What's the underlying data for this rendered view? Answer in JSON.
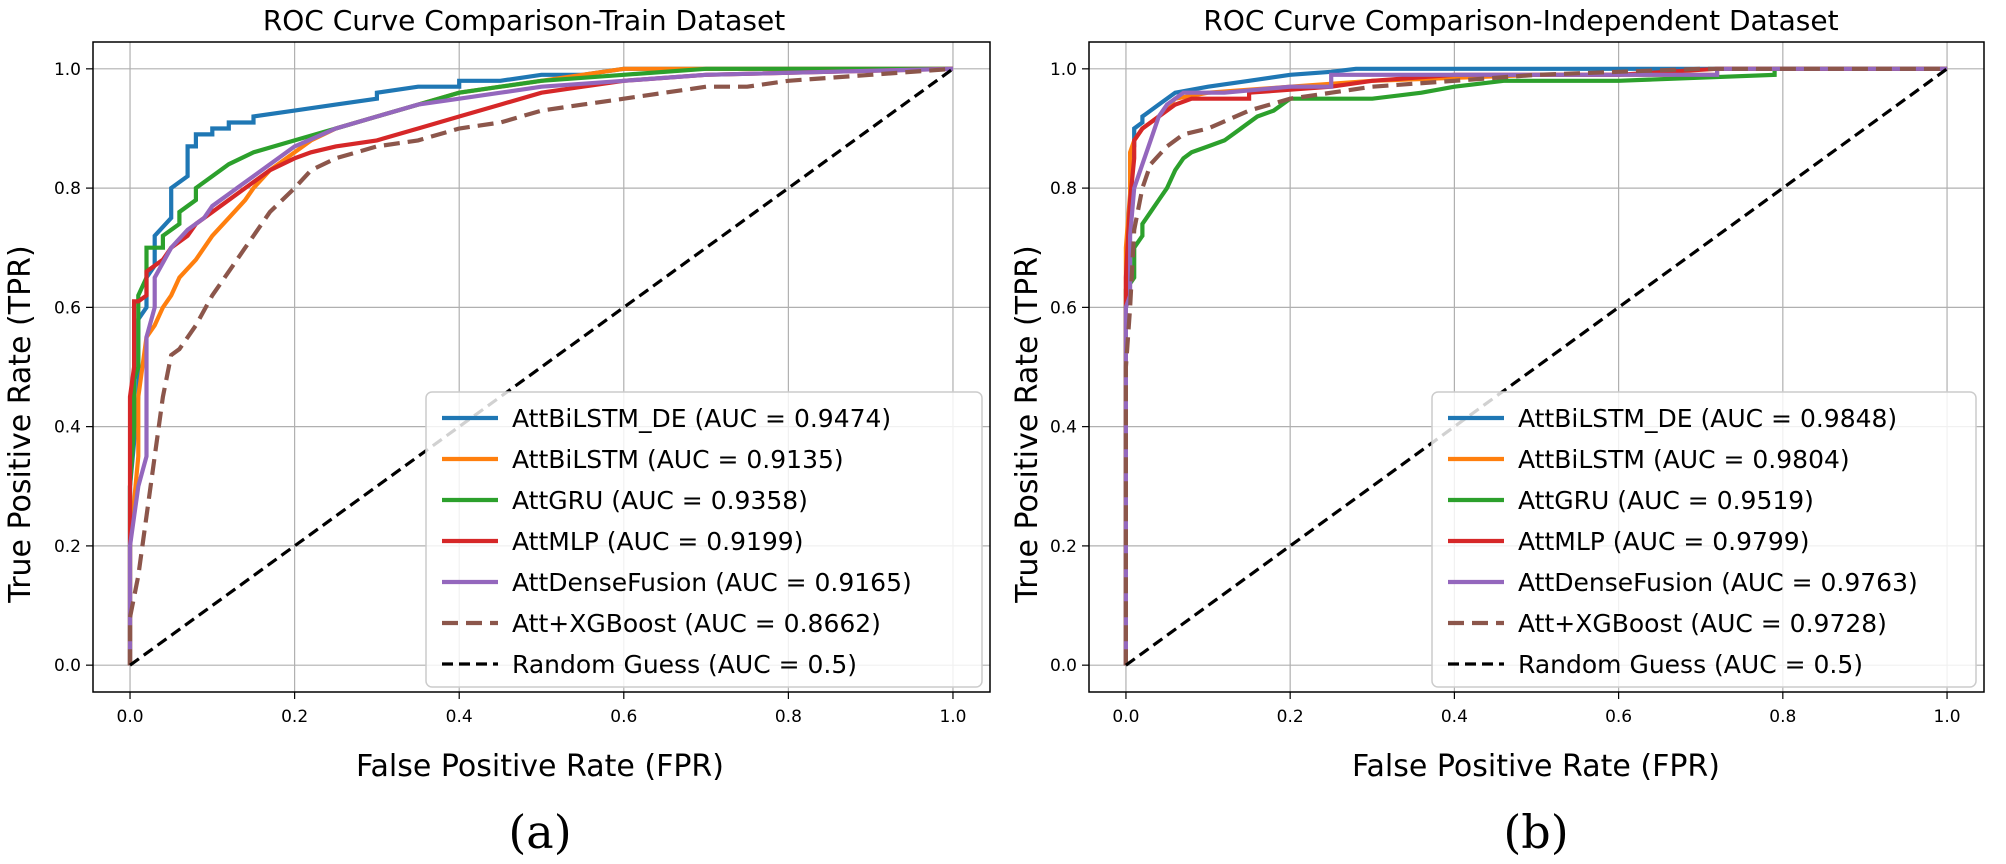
{
  "chart_data": [
    {
      "type": "line",
      "caption": "(a)",
      "title": "ROC Curve Comparison-Train Dataset",
      "xlabel": "False Positive Rate (FPR)",
      "ylabel": "True Positive Rate (TPR)",
      "xlim": [
        -0.045,
        1.045
      ],
      "ylim": [
        -0.045,
        1.045
      ],
      "xticks": [
        "0.0",
        "0.2",
        "0.4",
        "0.6",
        "0.8",
        "1.0"
      ],
      "yticks": [
        "0.0",
        "0.2",
        "0.4",
        "0.6",
        "0.8",
        "1.0"
      ],
      "grid": true,
      "legend_position": "lower-right",
      "series": [
        {
          "name": "AttBiLSTM_DE (AUC = 0.9474)",
          "color": "#1f77b4",
          "dashed": false,
          "x": [
            0,
            0,
            0.01,
            0.01,
            0.02,
            0.02,
            0.03,
            0.03,
            0.05,
            0.05,
            0.07,
            0.07,
            0.08,
            0.08,
            0.1,
            0.1,
            0.12,
            0.12,
            0.15,
            0.15,
            0.2,
            0.25,
            0.3,
            0.3,
            0.35,
            0.4,
            0.4,
            0.45,
            0.5,
            0.55,
            0.6,
            0.7,
            1.0
          ],
          "y": [
            0,
            0.3,
            0.45,
            0.58,
            0.6,
            0.65,
            0.67,
            0.72,
            0.75,
            0.8,
            0.82,
            0.87,
            0.87,
            0.89,
            0.89,
            0.9,
            0.9,
            0.91,
            0.91,
            0.92,
            0.93,
            0.94,
            0.95,
            0.96,
            0.97,
            0.97,
            0.98,
            0.98,
            0.99,
            0.99,
            1.0,
            1.0,
            1.0
          ]
        },
        {
          "name": "AttBiLSTM (AUC = 0.9135)",
          "color": "#ff7f0e",
          "dashed": false,
          "x": [
            0,
            0,
            0.01,
            0.01,
            0.02,
            0.03,
            0.04,
            0.05,
            0.06,
            0.08,
            0.1,
            0.12,
            0.14,
            0.15,
            0.17,
            0.2,
            0.22,
            0.25,
            0.3,
            0.35,
            0.4,
            0.45,
            0.5,
            0.55,
            0.6,
            0.7,
            1.0
          ],
          "y": [
            0,
            0.2,
            0.35,
            0.45,
            0.55,
            0.57,
            0.6,
            0.62,
            0.65,
            0.68,
            0.72,
            0.75,
            0.78,
            0.8,
            0.83,
            0.86,
            0.88,
            0.9,
            0.92,
            0.94,
            0.96,
            0.97,
            0.98,
            0.99,
            1.0,
            1.0,
            1.0
          ]
        },
        {
          "name": "AttGRU (AUC = 0.9358)",
          "color": "#2ca02c",
          "dashed": false,
          "x": [
            0,
            0,
            0.005,
            0.005,
            0.01,
            0.01,
            0.02,
            0.02,
            0.04,
            0.04,
            0.06,
            0.06,
            0.08,
            0.08,
            0.1,
            0.12,
            0.15,
            0.2,
            0.25,
            0.3,
            0.35,
            0.4,
            0.45,
            0.5,
            0.6,
            0.7,
            1.0
          ],
          "y": [
            0,
            0.3,
            0.4,
            0.48,
            0.5,
            0.62,
            0.65,
            0.7,
            0.7,
            0.72,
            0.74,
            0.76,
            0.78,
            0.8,
            0.82,
            0.84,
            0.86,
            0.88,
            0.9,
            0.92,
            0.94,
            0.96,
            0.97,
            0.98,
            0.99,
            1.0,
            1.0
          ]
        },
        {
          "name": "AttMLP (AUC = 0.9199)",
          "color": "#d62728",
          "dashed": false,
          "x": [
            0,
            0,
            0.005,
            0.005,
            0.01,
            0.02,
            0.02,
            0.04,
            0.05,
            0.07,
            0.08,
            0.1,
            0.12,
            0.14,
            0.17,
            0.2,
            0.22,
            0.25,
            0.3,
            0.35,
            0.4,
            0.45,
            0.5,
            0.55,
            0.6,
            0.7,
            1.0
          ],
          "y": [
            0,
            0.45,
            0.5,
            0.61,
            0.61,
            0.62,
            0.66,
            0.68,
            0.7,
            0.72,
            0.74,
            0.76,
            0.78,
            0.8,
            0.83,
            0.85,
            0.86,
            0.87,
            0.88,
            0.9,
            0.92,
            0.94,
            0.96,
            0.97,
            0.98,
            0.99,
            1.0
          ]
        },
        {
          "name": "AttDenseFusion (AUC = 0.9165)",
          "color": "#9467bd",
          "dashed": false,
          "x": [
            0,
            0,
            0.01,
            0.02,
            0.02,
            0.03,
            0.03,
            0.05,
            0.07,
            0.09,
            0.1,
            0.11,
            0.12,
            0.13,
            0.15,
            0.18,
            0.2,
            0.25,
            0.3,
            0.35,
            0.4,
            0.45,
            0.5,
            0.6,
            0.7,
            1.0
          ],
          "y": [
            0,
            0.2,
            0.3,
            0.35,
            0.55,
            0.6,
            0.65,
            0.7,
            0.73,
            0.75,
            0.77,
            0.78,
            0.79,
            0.8,
            0.82,
            0.85,
            0.87,
            0.9,
            0.92,
            0.94,
            0.95,
            0.96,
            0.97,
            0.98,
            0.99,
            1.0
          ]
        },
        {
          "name": "Att+XGBoost (AUC = 0.8662)",
          "color": "#8c564b",
          "dashed": true,
          "x": [
            0,
            0,
            0.01,
            0.02,
            0.03,
            0.04,
            0.05,
            0.06,
            0.08,
            0.1,
            0.12,
            0.14,
            0.15,
            0.17,
            0.2,
            0.22,
            0.25,
            0.3,
            0.35,
            0.4,
            0.45,
            0.5,
            0.55,
            0.6,
            0.65,
            0.7,
            0.75,
            0.8,
            0.9,
            1.0
          ],
          "y": [
            0,
            0.08,
            0.15,
            0.25,
            0.35,
            0.45,
            0.52,
            0.53,
            0.57,
            0.62,
            0.66,
            0.7,
            0.72,
            0.76,
            0.8,
            0.83,
            0.85,
            0.87,
            0.88,
            0.9,
            0.91,
            0.93,
            0.94,
            0.95,
            0.96,
            0.97,
            0.97,
            0.98,
            0.99,
            1.0
          ]
        },
        {
          "name": "Random Guess (AUC = 0.5)",
          "color": "#000000",
          "dashed": true,
          "x": [
            0,
            1
          ],
          "y": [
            0,
            1
          ]
        }
      ]
    },
    {
      "type": "line",
      "caption": "(b)",
      "title": "ROC Curve Comparison-Independent Dataset",
      "xlabel": "False Positive Rate (FPR)",
      "ylabel": "True Positive Rate (TPR)",
      "xlim": [
        -0.045,
        1.045
      ],
      "ylim": [
        -0.045,
        1.045
      ],
      "xticks": [
        "0.0",
        "0.2",
        "0.4",
        "0.6",
        "0.8",
        "1.0"
      ],
      "yticks": [
        "0.0",
        "0.2",
        "0.4",
        "0.6",
        "0.8",
        "1.0"
      ],
      "grid": true,
      "legend_position": "lower-right",
      "series": [
        {
          "name": "AttBiLSTM_DE (AUC = 0.9848)",
          "color": "#1f77b4",
          "dashed": false,
          "x": [
            0,
            0,
            0.005,
            0.005,
            0.01,
            0.01,
            0.02,
            0.02,
            0.03,
            0.04,
            0.06,
            0.1,
            0.15,
            0.2,
            0.25,
            0.28,
            0.3,
            1.0
          ],
          "y": [
            0,
            0.6,
            0.75,
            0.85,
            0.87,
            0.9,
            0.91,
            0.92,
            0.93,
            0.94,
            0.96,
            0.97,
            0.98,
            0.99,
            0.995,
            1.0,
            1.0,
            1.0
          ]
        },
        {
          "name": "AttBiLSTM (AUC = 0.9804)",
          "color": "#ff7f0e",
          "dashed": false,
          "x": [
            0,
            0,
            0.005,
            0.005,
            0.01,
            0.02,
            0.04,
            0.06,
            0.1,
            0.2,
            0.3,
            0.5,
            0.72,
            0.72,
            1.0
          ],
          "y": [
            0,
            0.7,
            0.79,
            0.86,
            0.88,
            0.9,
            0.92,
            0.95,
            0.96,
            0.97,
            0.98,
            0.99,
            0.99,
            1.0,
            1.0
          ]
        },
        {
          "name": "AttGRU (AUC = 0.9519)",
          "color": "#2ca02c",
          "dashed": false,
          "x": [
            0,
            0,
            0.01,
            0.01,
            0.02,
            0.02,
            0.03,
            0.04,
            0.05,
            0.06,
            0.07,
            0.08,
            0.1,
            0.12,
            0.14,
            0.16,
            0.18,
            0.2,
            0.3,
            0.36,
            0.4,
            0.46,
            0.6,
            0.79,
            0.79,
            1.0
          ],
          "y": [
            0,
            0.63,
            0.65,
            0.7,
            0.72,
            0.74,
            0.76,
            0.78,
            0.8,
            0.83,
            0.85,
            0.86,
            0.87,
            0.88,
            0.9,
            0.92,
            0.93,
            0.95,
            0.95,
            0.96,
            0.97,
            0.98,
            0.98,
            0.99,
            1.0,
            1.0
          ]
        },
        {
          "name": "AttMLP (AUC = 0.9799)",
          "color": "#d62728",
          "dashed": false,
          "x": [
            0,
            0,
            0.005,
            0.01,
            0.01,
            0.02,
            0.04,
            0.06,
            0.08,
            0.15,
            0.15,
            0.25,
            0.3,
            0.4,
            0.6,
            0.72,
            1.0
          ],
          "y": [
            0,
            0.65,
            0.78,
            0.85,
            0.88,
            0.9,
            0.92,
            0.94,
            0.95,
            0.95,
            0.96,
            0.97,
            0.98,
            0.99,
            0.99,
            1.0,
            1.0
          ]
        },
        {
          "name": "AttDenseFusion (AUC = 0.9763)",
          "color": "#9467bd",
          "dashed": false,
          "x": [
            0,
            0,
            0.005,
            0.005,
            0.01,
            0.02,
            0.03,
            0.04,
            0.05,
            0.06,
            0.07,
            0.12,
            0.2,
            0.25,
            0.25,
            0.72,
            0.72,
            1.0
          ],
          "y": [
            0,
            0.6,
            0.62,
            0.72,
            0.8,
            0.84,
            0.88,
            0.92,
            0.94,
            0.95,
            0.96,
            0.96,
            0.97,
            0.97,
            0.99,
            0.99,
            1.0,
            1.0
          ]
        },
        {
          "name": "Att+XGBoost (AUC = 0.9728)",
          "color": "#8c564b",
          "dashed": true,
          "x": [
            0,
            0,
            0.005,
            0.01,
            0.02,
            0.03,
            0.05,
            0.07,
            0.1,
            0.15,
            0.2,
            0.25,
            0.3,
            0.4,
            0.5,
            0.7,
            1.0
          ],
          "y": [
            0,
            0.5,
            0.6,
            0.73,
            0.8,
            0.84,
            0.87,
            0.89,
            0.9,
            0.93,
            0.95,
            0.96,
            0.97,
            0.98,
            0.99,
            1.0,
            1.0
          ]
        },
        {
          "name": "Random Guess (AUC = 0.5)",
          "color": "#000000",
          "dashed": true,
          "x": [
            0,
            1
          ],
          "y": [
            0,
            1
          ]
        }
      ]
    }
  ]
}
